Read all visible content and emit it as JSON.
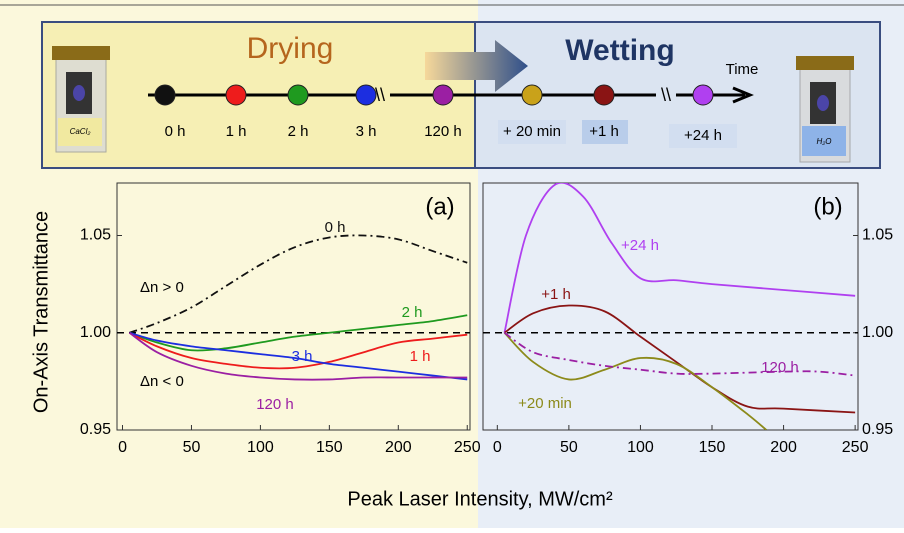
{
  "timeline": {
    "drying": "Drying",
    "wetting": "Wetting",
    "time": "Time",
    "left_vial": "CaCl₂",
    "right_vial": "H₂O",
    "points": [
      {
        "label": "0 h",
        "color": "#111111"
      },
      {
        "label": "1 h",
        "color": "#ee1c1c"
      },
      {
        "label": "2 h",
        "color": "#1f9a1f"
      },
      {
        "label": "3 h",
        "color": "#1c2ee0"
      },
      {
        "label": "120 h",
        "color": "#9b1fa3"
      },
      {
        "label": "+ 20 min",
        "color": "#c9a21a"
      },
      {
        "label": "+1 h",
        "color": "#8a1414"
      },
      {
        "label": "+24 h",
        "color": "#b040f0"
      }
    ]
  },
  "y_label": "On-Axis Transmittance",
  "x_label": "Peak Laser Intensity, MW/cm²",
  "chart_data": [
    {
      "type": "line",
      "title": "(a)",
      "annotations": [
        "Δn > 0",
        "Δn < 0"
      ],
      "reference": 1.0,
      "xlim": [
        -4,
        252
      ],
      "xticks": [
        0,
        50,
        100,
        150,
        200,
        250
      ],
      "ylim": [
        0.95,
        1.077
      ],
      "yticks": [
        0.95,
        {
          "value": 1,
          "label": "1.00"
        },
        1.05
      ],
      "y_side": "left",
      "series": [
        {
          "name": "0 h",
          "color": "#111111",
          "dash": "dashdot",
          "x": [
            5,
            25,
            50,
            75,
            100,
            125,
            150,
            175,
            200,
            225,
            250
          ],
          "values": [
            1.0,
            1.005,
            1.013,
            1.024,
            1.035,
            1.044,
            1.049,
            1.05,
            1.048,
            1.042,
            1.036
          ]
        },
        {
          "name": "2 h",
          "color": "#1f9a1f",
          "dash": "solid",
          "x": [
            5,
            25,
            50,
            75,
            100,
            125,
            150,
            175,
            200,
            225,
            250
          ],
          "values": [
            1.0,
            0.995,
            0.991,
            0.992,
            0.995,
            0.998,
            1.0,
            1.002,
            1.004,
            1.006,
            1.009
          ]
        },
        {
          "name": "1 h",
          "color": "#ee1c1c",
          "dash": "solid",
          "x": [
            5,
            25,
            50,
            75,
            100,
            125,
            150,
            175,
            200,
            225,
            250
          ],
          "values": [
            1.0,
            0.993,
            0.987,
            0.984,
            0.982,
            0.982,
            0.985,
            0.99,
            0.995,
            0.997,
            0.999
          ]
        },
        {
          "name": "3 h",
          "color": "#1c2ee0",
          "dash": "solid",
          "x": [
            5,
            25,
            50,
            75,
            100,
            125,
            150,
            175,
            200,
            225,
            250
          ],
          "values": [
            1.0,
            0.996,
            0.993,
            0.991,
            0.989,
            0.987,
            0.984,
            0.982,
            0.98,
            0.978,
            0.976
          ]
        },
        {
          "name": "120 h",
          "color": "#9b1fa3",
          "dash": "solid",
          "x": [
            5,
            25,
            50,
            75,
            100,
            125,
            150,
            175,
            200,
            225,
            250
          ],
          "values": [
            1.0,
            0.99,
            0.983,
            0.979,
            0.977,
            0.976,
            0.976,
            0.977,
            0.977,
            0.977,
            0.977
          ]
        }
      ]
    },
    {
      "type": "line",
      "title": "(b)",
      "reference": 1.0,
      "xlim": [
        -10,
        252
      ],
      "xticks": [
        0,
        50,
        100,
        150,
        200,
        250
      ],
      "ylim": [
        0.95,
        1.077
      ],
      "yticks": [
        0.95,
        {
          "value": 1,
          "label": "1.00"
        },
        1.05
      ],
      "y_side": "right",
      "series": [
        {
          "name": "+24 h",
          "color": "#b040f0",
          "dash": "solid",
          "x": [
            5,
            20,
            40,
            60,
            80,
            100,
            125,
            150,
            200,
            250
          ],
          "values": [
            1.0,
            1.05,
            1.076,
            1.07,
            1.046,
            1.028,
            1.027,
            1.025,
            1.022,
            1.019
          ]
        },
        {
          "name": "+1 h",
          "color": "#8a1414",
          "dash": "solid",
          "x": [
            5,
            25,
            50,
            75,
            100,
            125,
            150,
            175,
            200,
            250
          ],
          "values": [
            1.0,
            1.01,
            1.014,
            1.011,
            0.998,
            0.985,
            0.972,
            0.962,
            0.961,
            0.959
          ]
        },
        {
          "name": "+20 min",
          "color": "#8c8a1a",
          "dash": "solid",
          "x": [
            5,
            25,
            50,
            75,
            100,
            125,
            150,
            175,
            188
          ],
          "values": [
            1.0,
            0.985,
            0.976,
            0.981,
            0.987,
            0.984,
            0.972,
            0.958,
            0.95
          ]
        },
        {
          "name": "120 h",
          "color": "#9b1fa3",
          "dash": "dashdot",
          "x": [
            5,
            25,
            50,
            75,
            100,
            125,
            150,
            200,
            225,
            250
          ],
          "values": [
            1.0,
            0.99,
            0.986,
            0.983,
            0.981,
            0.979,
            0.979,
            0.98,
            0.98,
            0.978
          ]
        }
      ]
    }
  ]
}
